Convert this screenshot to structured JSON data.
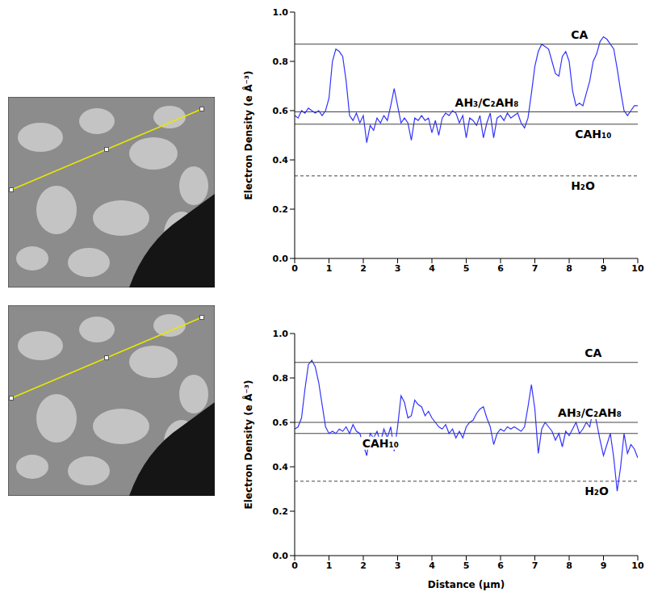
{
  "chart_data": [
    {
      "type": "line",
      "y_label": "Electron Density (e Å⁻³)",
      "x": [
        0,
        0.1,
        0.2,
        0.3,
        0.4,
        0.5,
        0.6,
        0.7,
        0.8,
        0.9,
        1,
        1.1,
        1.2,
        1.3,
        1.4,
        1.5,
        1.6,
        1.7,
        1.8,
        1.9,
        2,
        2.1,
        2.2,
        2.3,
        2.4,
        2.5,
        2.6,
        2.7,
        2.8,
        2.9,
        3,
        3.1,
        3.2,
        3.3,
        3.4,
        3.5,
        3.6,
        3.7,
        3.8,
        3.9,
        4,
        4.1,
        4.2,
        4.3,
        4.4,
        4.5,
        4.6,
        4.7,
        4.8,
        4.9,
        5,
        5.1,
        5.2,
        5.3,
        5.4,
        5.5,
        5.6,
        5.7,
        5.8,
        5.9,
        6,
        6.1,
        6.2,
        6.3,
        6.4,
        6.5,
        6.6,
        6.7,
        6.8,
        6.9,
        7,
        7.1,
        7.2,
        7.3,
        7.4,
        7.5,
        7.6,
        7.7,
        7.8,
        7.9,
        8,
        8.1,
        8.2,
        8.3,
        8.4,
        8.5,
        8.6,
        8.7,
        8.8,
        8.9,
        9,
        9.1,
        9.2,
        9.3,
        9.4,
        9.5,
        9.6,
        9.7,
        9.8,
        9.9,
        10
      ],
      "series": [
        {
          "color": "#3333ff",
          "values": [
            0.58,
            0.57,
            0.6,
            0.59,
            0.61,
            0.6,
            0.59,
            0.6,
            0.58,
            0.6,
            0.65,
            0.8,
            0.85,
            0.84,
            0.82,
            0.72,
            0.58,
            0.56,
            0.59,
            0.55,
            0.58,
            0.47,
            0.54,
            0.52,
            0.57,
            0.55,
            0.58,
            0.56,
            0.62,
            0.69,
            0.62,
            0.55,
            0.57,
            0.55,
            0.48,
            0.57,
            0.56,
            0.58,
            0.56,
            0.57,
            0.51,
            0.56,
            0.5,
            0.57,
            0.59,
            0.58,
            0.6,
            0.59,
            0.55,
            0.58,
            0.49,
            0.57,
            0.56,
            0.54,
            0.58,
            0.49,
            0.55,
            0.59,
            0.49,
            0.57,
            0.58,
            0.56,
            0.59,
            0.57,
            0.58,
            0.59,
            0.55,
            0.53,
            0.57,
            0.67,
            0.78,
            0.84,
            0.87,
            0.86,
            0.85,
            0.8,
            0.75,
            0.74,
            0.82,
            0.84,
            0.8,
            0.68,
            0.62,
            0.63,
            0.62,
            0.67,
            0.72,
            0.8,
            0.83,
            0.88,
            0.9,
            0.89,
            0.87,
            0.85,
            0.77,
            0.68,
            0.6,
            0.58,
            0.6,
            0.62,
            0.62
          ]
        }
      ],
      "annotations": [
        {
          "text": "CA",
          "y": 0.87,
          "line_style": "solid"
        },
        {
          "text": "AH₃/C₂AH₈",
          "y": 0.595,
          "line_style": "solid"
        },
        {
          "text": "CAH₁₀",
          "y": 0.545,
          "line_style": "solid"
        },
        {
          "text": "H₂O",
          "y": 0.335,
          "line_style": "dashed"
        }
      ],
      "xlim": [
        0,
        10
      ],
      "xticks": [
        0,
        1,
        2,
        3,
        4,
        5,
        6,
        7,
        8,
        9,
        10
      ],
      "ylim": [
        0,
        1
      ],
      "yticks": [
        {
          "value": 0,
          "label": "0.0"
        },
        {
          "value": 0.2,
          "label": "0.2"
        },
        {
          "value": 0.4,
          "label": "0.4"
        },
        {
          "value": 0.6,
          "label": "0.6"
        },
        {
          "value": 0.8,
          "label": "0.8"
        },
        {
          "value": 1,
          "label": "1.0"
        }
      ]
    },
    {
      "type": "line",
      "y_label": "Electron Density (e Å⁻³)",
      "x_label": "Distance (µm)",
      "x": [
        0,
        0.1,
        0.2,
        0.3,
        0.4,
        0.5,
        0.6,
        0.7,
        0.8,
        0.9,
        1,
        1.1,
        1.2,
        1.3,
        1.4,
        1.5,
        1.6,
        1.7,
        1.8,
        1.9,
        2,
        2.1,
        2.2,
        2.3,
        2.4,
        2.5,
        2.6,
        2.7,
        2.8,
        2.9,
        3,
        3.1,
        3.2,
        3.3,
        3.4,
        3.5,
        3.6,
        3.7,
        3.8,
        3.9,
        4,
        4.1,
        4.2,
        4.3,
        4.4,
        4.5,
        4.6,
        4.7,
        4.8,
        4.9,
        5,
        5.1,
        5.2,
        5.3,
        5.4,
        5.5,
        5.6,
        5.7,
        5.8,
        5.9,
        6,
        6.1,
        6.2,
        6.3,
        6.4,
        6.5,
        6.6,
        6.7,
        6.8,
        6.9,
        7,
        7.1,
        7.2,
        7.3,
        7.4,
        7.5,
        7.6,
        7.7,
        7.8,
        7.9,
        8,
        8.1,
        8.2,
        8.3,
        8.4,
        8.5,
        8.6,
        8.7,
        8.8,
        8.9,
        9,
        9.1,
        9.2,
        9.3,
        9.4,
        9.5,
        9.6,
        9.7,
        9.8,
        9.9,
        10
      ],
      "series": [
        {
          "color": "#3333ff",
          "values": [
            0.57,
            0.58,
            0.62,
            0.75,
            0.86,
            0.88,
            0.85,
            0.78,
            0.68,
            0.58,
            0.55,
            0.56,
            0.55,
            0.57,
            0.56,
            0.58,
            0.55,
            0.59,
            0.56,
            0.55,
            0.5,
            0.45,
            0.55,
            0.53,
            0.56,
            0.51,
            0.57,
            0.53,
            0.58,
            0.47,
            0.58,
            0.72,
            0.69,
            0.62,
            0.63,
            0.7,
            0.68,
            0.67,
            0.63,
            0.65,
            0.62,
            0.6,
            0.58,
            0.57,
            0.59,
            0.55,
            0.57,
            0.53,
            0.56,
            0.53,
            0.58,
            0.6,
            0.61,
            0.64,
            0.66,
            0.67,
            0.62,
            0.58,
            0.5,
            0.55,
            0.57,
            0.56,
            0.58,
            0.57,
            0.58,
            0.57,
            0.56,
            0.58,
            0.67,
            0.77,
            0.66,
            0.46,
            0.57,
            0.6,
            0.58,
            0.56,
            0.52,
            0.55,
            0.49,
            0.56,
            0.54,
            0.57,
            0.6,
            0.55,
            0.57,
            0.6,
            0.58,
            0.66,
            0.6,
            0.52,
            0.45,
            0.5,
            0.55,
            0.44,
            0.29,
            0.4,
            0.55,
            0.46,
            0.5,
            0.48,
            0.44
          ]
        }
      ],
      "annotations": [
        {
          "text": "CA",
          "y": 0.87,
          "line_style": "solid"
        },
        {
          "text": "AH₃/C₂AH₈",
          "y": 0.6,
          "line_style": "solid"
        },
        {
          "text": "CAH₁₀",
          "y": 0.55,
          "line_style": "solid"
        },
        {
          "text": "H₂O",
          "y": 0.335,
          "line_style": "dashed"
        }
      ],
      "xlim": [
        0,
        10
      ],
      "xticks": [
        0,
        1,
        2,
        3,
        4,
        5,
        6,
        7,
        8,
        9,
        10
      ],
      "ylim": [
        0,
        1
      ],
      "yticks": [
        {
          "value": 0,
          "label": "0.0"
        },
        {
          "value": 0.2,
          "label": "0.2"
        },
        {
          "value": 0.4,
          "label": "0.4"
        },
        {
          "value": 0.6,
          "label": "0.6"
        },
        {
          "value": 0.8,
          "label": "0.8"
        },
        {
          "value": 1,
          "label": "1.0"
        }
      ]
    }
  ]
}
